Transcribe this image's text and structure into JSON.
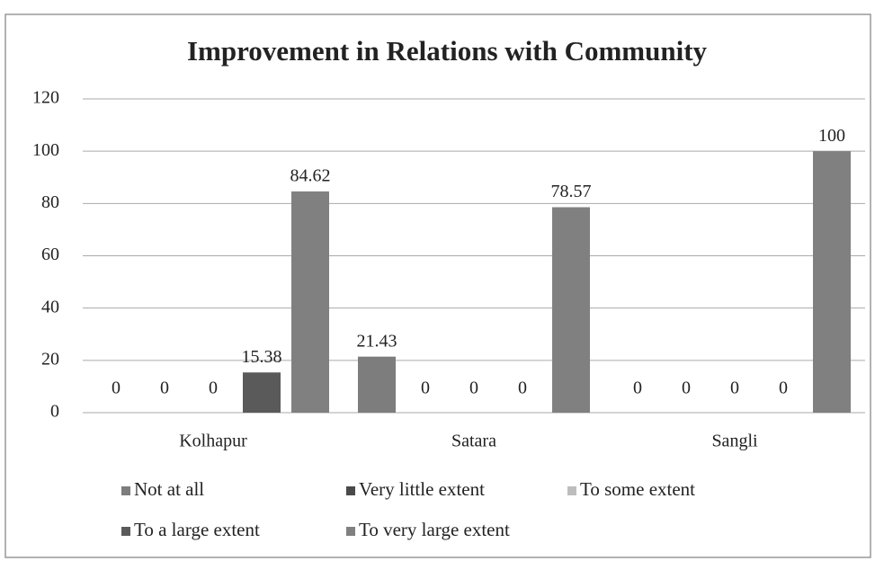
{
  "chart_data": {
    "type": "bar",
    "title": "Improvement in Relations with Community",
    "categories": [
      "Kolhapur",
      "Satara",
      "Sangli"
    ],
    "series": [
      {
        "name": "Not at all",
        "color": "#7d7d7d",
        "values": [
          0,
          21.43,
          0
        ]
      },
      {
        "name": "Very little extent",
        "color": "#4a4a4a",
        "values": [
          0,
          0,
          0
        ]
      },
      {
        "name": "To some extent",
        "color": "#bdbdbd",
        "values": [
          0,
          0,
          0
        ]
      },
      {
        "name": "To a large extent",
        "color": "#5a5a5a",
        "values": [
          15.38,
          0,
          0
        ]
      },
      {
        "name": "To very large extent",
        "color": "#808080",
        "values": [
          84.62,
          78.57,
          100
        ]
      }
    ],
    "ylim": [
      0,
      120
    ],
    "yticks": [
      0,
      20,
      40,
      60,
      80,
      100,
      120
    ],
    "grid": true
  }
}
